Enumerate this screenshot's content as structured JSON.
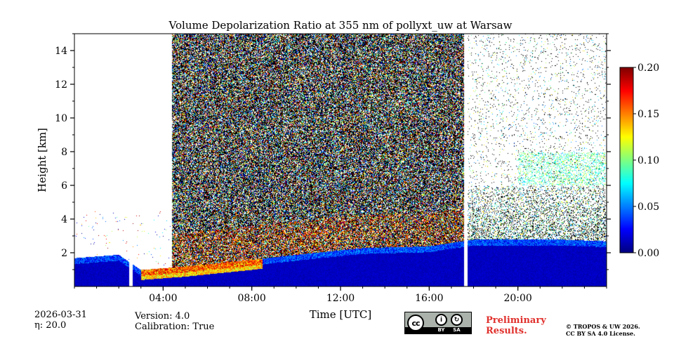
{
  "chart_data": {
    "type": "heatmap",
    "title": "Volume Depolarization Ratio at 355 nm of pollyxt_uw at Warsaw",
    "xlabel": "Time [UTC]",
    "ylabel": "Height [km]",
    "xlim_hours": [
      0,
      24
    ],
    "ylim_km": [
      0,
      15
    ],
    "xticks": [
      {
        "hour": 4,
        "label": "04:00"
      },
      {
        "hour": 8,
        "label": "08:00"
      },
      {
        "hour": 12,
        "label": "12:00"
      },
      {
        "hour": 16,
        "label": "16:00"
      },
      {
        "hour": 20,
        "label": "20:00"
      }
    ],
    "yticks": [
      {
        "km": 2,
        "label": "2"
      },
      {
        "km": 4,
        "label": "4"
      },
      {
        "km": 6,
        "label": "6"
      },
      {
        "km": 8,
        "label": "8"
      },
      {
        "km": 10,
        "label": "10"
      },
      {
        "km": 12,
        "label": "12"
      },
      {
        "km": 14,
        "label": "14"
      }
    ],
    "colorbar": {
      "range": [
        0.0,
        0.2
      ],
      "ticks": [
        {
          "value": 0.0,
          "label": "0.00"
        },
        {
          "value": 0.05,
          "label": "0.05"
        },
        {
          "value": 0.1,
          "label": "0.10"
        },
        {
          "value": 0.15,
          "label": "0.15"
        },
        {
          "value": 0.2,
          "label": "0.20"
        }
      ]
    },
    "boundary_layer_top_km": [
      {
        "hour": 0,
        "km": 1.7
      },
      {
        "hour": 2,
        "km": 1.9
      },
      {
        "hour": 3,
        "km": 1.0
      },
      {
        "hour": 5,
        "km": 1.2
      },
      {
        "hour": 8,
        "km": 1.6
      },
      {
        "hour": 10,
        "km": 1.9
      },
      {
        "hour": 13,
        "km": 2.3
      },
      {
        "hour": 16,
        "km": 2.4
      },
      {
        "hour": 18,
        "km": 2.8
      },
      {
        "hour": 22,
        "km": 2.8
      },
      {
        "hour": 24,
        "km": 2.7
      }
    ],
    "noisy_period_hours": [
      4.4,
      17.6
    ],
    "data_gaps_hours": [
      2.55,
      17.65
    ]
  },
  "footer": {
    "date": "2026-03-31",
    "eta": "η: 20.0",
    "version": "Version: 4.0",
    "calibration": "Calibration: True",
    "preliminary": "Preliminary",
    "results": "Results.",
    "copyright_1": "© TROPOS & UW 2026.",
    "copyright_2": "CC BY SA 4.0 License.",
    "cc_main": "cc",
    "cc_by": "BY",
    "cc_sa": "SA"
  }
}
